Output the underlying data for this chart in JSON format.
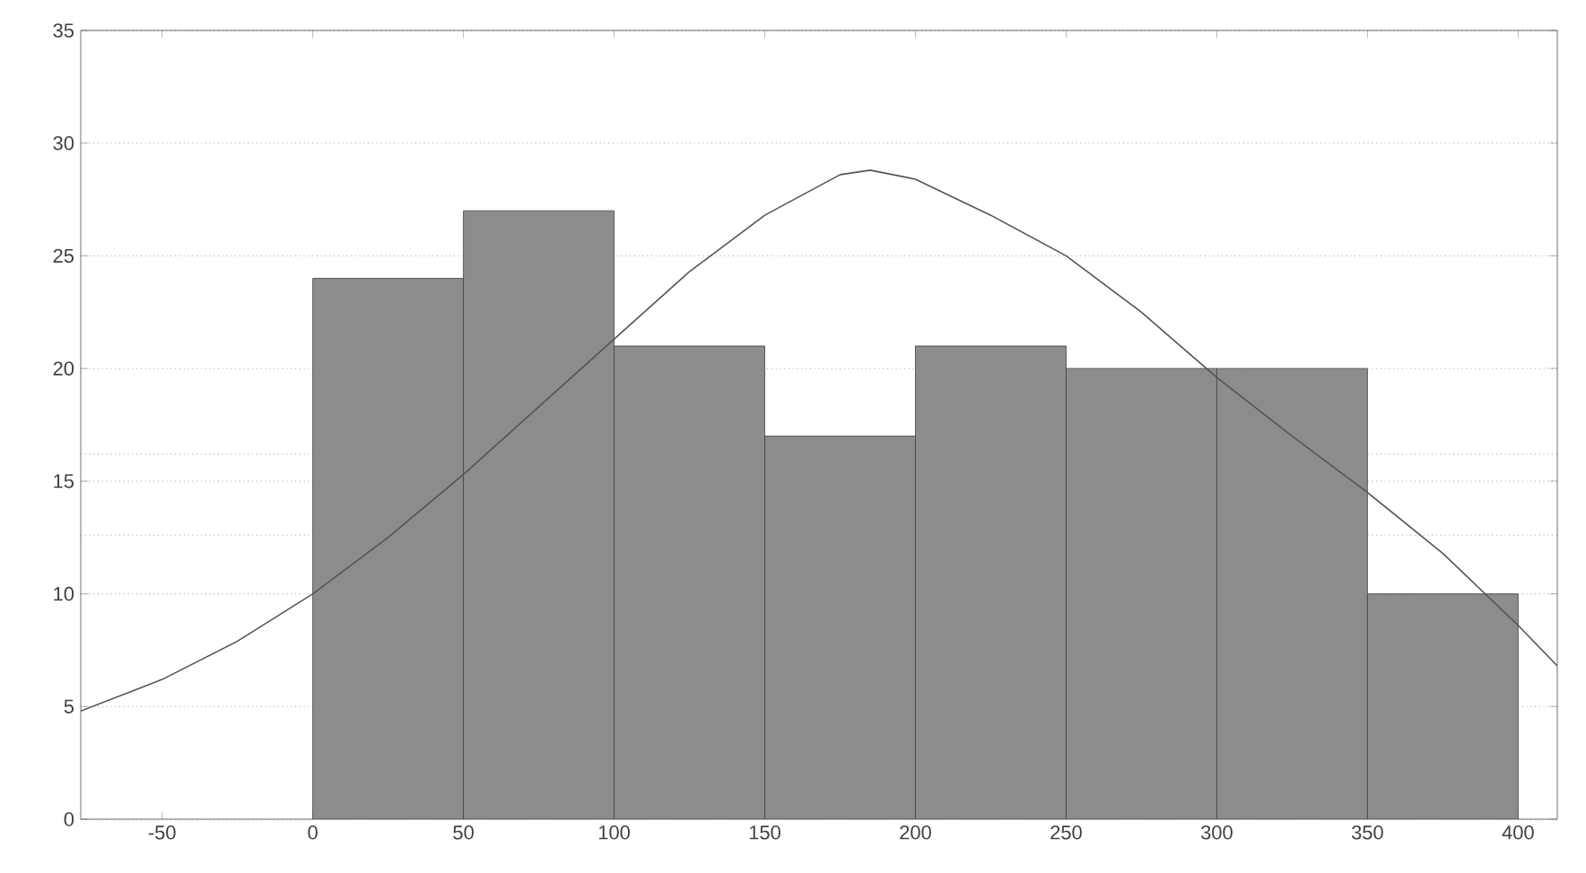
{
  "chart_data": {
    "type": "histogram",
    "bins": [
      0,
      50,
      100,
      150,
      200,
      250,
      300,
      350,
      400
    ],
    "values": [
      24,
      27,
      21,
      17,
      21,
      20,
      20,
      10
    ],
    "color": "#8c8c8c",
    "series": [
      {
        "type": "line",
        "color": "#555555",
        "x": [
          -77,
          -50,
          -25,
          0,
          25,
          50,
          75,
          100,
          125,
          150,
          175,
          185,
          200,
          225,
          250,
          275,
          300,
          325,
          350,
          375,
          400,
          413
        ],
        "values": [
          4.8,
          6.2,
          7.9,
          10,
          12.5,
          15.3,
          18.3,
          21.3,
          24.3,
          26.8,
          28.6,
          28.8,
          28.4,
          26.8,
          25,
          22.5,
          19.6,
          17,
          14.5,
          11.8,
          8.6,
          6.8
        ]
      }
    ],
    "xlim": [
      -77,
      413
    ],
    "ylim": [
      0,
      35
    ],
    "xticks": [
      -50,
      0,
      50,
      100,
      150,
      200,
      250,
      300,
      350,
      400
    ],
    "yticks": [
      0,
      5,
      10,
      15,
      20,
      25,
      30,
      35
    ],
    "grid": "y",
    "ref_lines": [
      {
        "axis": "y",
        "value": 16.2,
        "line_style": "dotted"
      },
      {
        "axis": "y",
        "value": 12.6,
        "line_style": "dotted"
      }
    ]
  }
}
